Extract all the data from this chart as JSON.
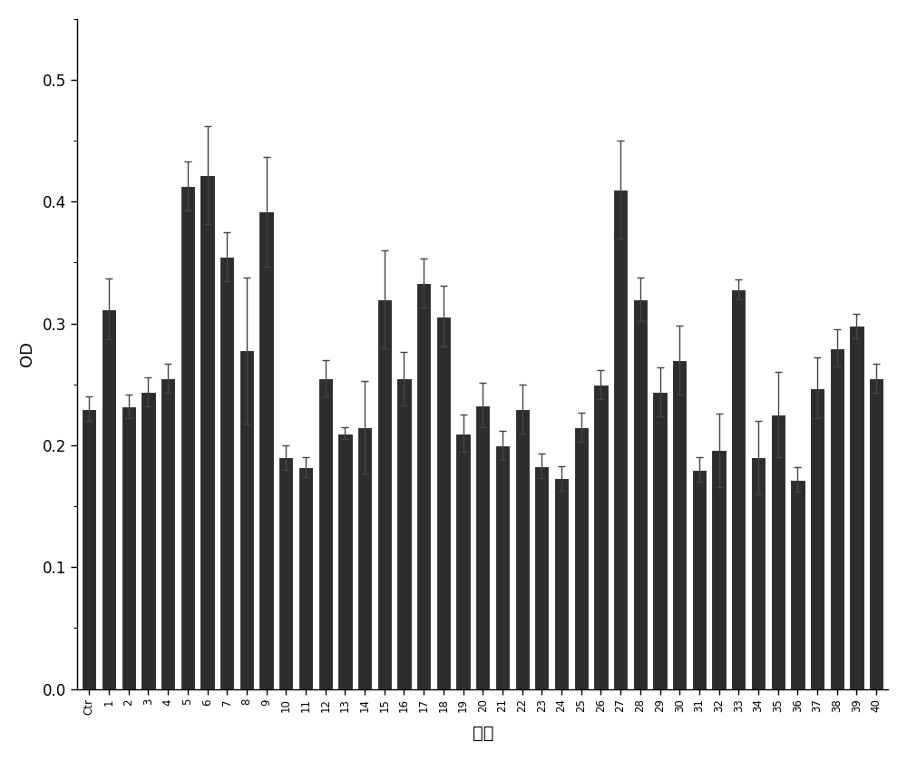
{
  "categories": [
    "Ctr",
    "1",
    "2",
    "3",
    "4",
    "5",
    "6",
    "7",
    "8",
    "9",
    "10",
    "11",
    "12",
    "13",
    "14",
    "15",
    "16",
    "17",
    "18",
    "19",
    "20",
    "21",
    "22",
    "23",
    "24",
    "25",
    "26",
    "27",
    "28",
    "29",
    "30",
    "31",
    "32",
    "33",
    "34",
    "35",
    "36",
    "37",
    "38",
    "39",
    "40"
  ],
  "values": [
    0.23,
    0.312,
    0.232,
    0.244,
    0.255,
    0.413,
    0.422,
    0.355,
    0.278,
    0.392,
    0.19,
    0.182,
    0.255,
    0.21,
    0.215,
    0.32,
    0.255,
    0.333,
    0.306,
    0.21,
    0.233,
    0.2,
    0.23,
    0.183,
    0.173,
    0.215,
    0.25,
    0.41,
    0.32,
    0.244,
    0.27,
    0.18,
    0.196,
    0.328,
    0.19,
    0.225,
    0.172,
    0.247,
    0.28,
    0.298,
    0.255
  ],
  "errors": [
    0.01,
    0.025,
    0.01,
    0.012,
    0.012,
    0.02,
    0.04,
    0.02,
    0.06,
    0.045,
    0.01,
    0.008,
    0.015,
    0.005,
    0.038,
    0.04,
    0.022,
    0.02,
    0.025,
    0.015,
    0.018,
    0.012,
    0.02,
    0.01,
    0.01,
    0.012,
    0.012,
    0.04,
    0.018,
    0.02,
    0.028,
    0.01,
    0.03,
    0.008,
    0.03,
    0.035,
    0.01,
    0.025,
    0.015,
    0.01,
    0.012
  ],
  "bar_color": "#2d2d2d",
  "error_color": "#555555",
  "background_color": "#ffffff",
  "ylabel": "OD",
  "xlabel": "编号",
  "ylim": [
    0.0,
    0.55
  ],
  "yticks": [
    0.0,
    0.1,
    0.2,
    0.3,
    0.4,
    0.5
  ],
  "bar_width": 0.75,
  "figsize": [
    10.0,
    8.39
  ],
  "dpi": 100
}
